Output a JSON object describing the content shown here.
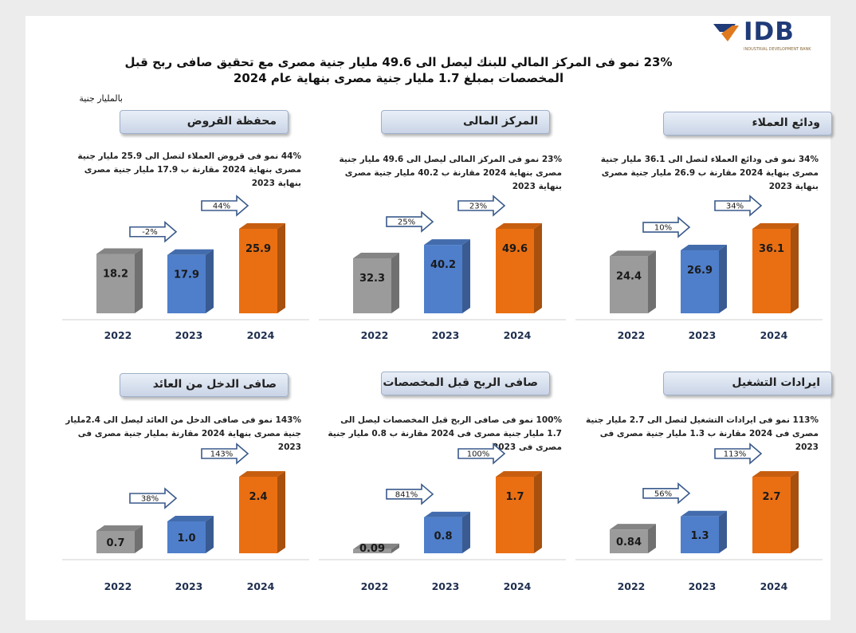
{
  "logo": {
    "text": "IDB",
    "subtext": "INDUSTRIAL DEVELOPMENT BANK"
  },
  "headline": "23% نمو فى المركز المالي للبنك ليصل الى 49.6 مليار جنية مصرى مع تحقيق صافى ربح قبل المخصصات بمبلغ 1.7 مليار جنية مصرى بنهاية عام 2024",
  "unit_label": "بالمليار جنية",
  "colors": {
    "2022": "#9b9b9b",
    "2023": "#4f7fcb",
    "2024": "#ea6f12"
  },
  "chart_data": [
    {
      "type": "bar",
      "title": "ودائع العملاء",
      "description": "34% نمو فى ودائع العملاء لتصل الى 36.1 مليار جنية مصرى بنهاية 2024 مقارنة ب 26.9 مليار جنية مصرى بنهاية 2023",
      "categories": [
        "2022",
        "2023",
        "2024"
      ],
      "values": [
        24.4,
        26.9,
        36.1
      ],
      "value_labels": [
        "24.4",
        "26.9",
        "36.1"
      ],
      "growth": [
        "10%",
        "34%"
      ],
      "ylim": [
        0,
        36.1
      ]
    },
    {
      "type": "bar",
      "title": "المركز المالى",
      "description": "23% نمو فى المركز المالى ليصل الى 49.6 مليار جنية مصرى بنهاية 2024 مقارنة ب 40.2 مليار جنية مصرى بنهاية 2023",
      "categories": [
        "2022",
        "2023",
        "2024"
      ],
      "values": [
        32.3,
        40.2,
        49.6
      ],
      "value_labels": [
        "32.3",
        "40.2",
        "49.6"
      ],
      "growth": [
        "25%",
        "23%"
      ],
      "ylim": [
        0,
        49.6
      ]
    },
    {
      "type": "bar",
      "title": "محفظة القروض",
      "description": "44% نمو فى قروض العملاء لتصل الى 25.9 مليار جنية مصرى بنهاية 2024 مقارنة ب 17.9 مليار جنية مصرى بنهاية 2023",
      "categories": [
        "2022",
        "2023",
        "2024"
      ],
      "values": [
        18.2,
        17.9,
        25.9
      ],
      "value_labels": [
        "18.2",
        "17.9",
        "25.9"
      ],
      "growth": [
        "-2%",
        "44%"
      ],
      "ylim": [
        0,
        25.9
      ]
    },
    {
      "type": "bar",
      "title": "ايرادات التشغيل",
      "description": "113% نمو فى ايرادات التشغيل لتصل الى 2.7 مليار جنية مصرى فى 2024 مقارنة ب 1.3 مليار جنية مصرى فى 2023",
      "categories": [
        "2022",
        "2023",
        "2024"
      ],
      "values": [
        0.84,
        1.3,
        2.7
      ],
      "value_labels": [
        "0.84",
        "1.3",
        "2.7"
      ],
      "growth": [
        "56%",
        "113%"
      ],
      "ylim": [
        0,
        2.7
      ]
    },
    {
      "type": "bar",
      "title": "صافى الربح قبل المخصصات",
      "description": "100% نمو فى صافى الربح قبل المخصصات ليصل الى 1.7 مليار جنية مصرى فى 2024 مقارنة ب 0.8 مليار جنية مصرى فى 2023",
      "categories": [
        "2022",
        "2023",
        "2024"
      ],
      "values": [
        0.09,
        0.8,
        1.7
      ],
      "value_labels": [
        "0.09",
        "0.8",
        "1.7"
      ],
      "growth": [
        "841%",
        "100%"
      ],
      "ylim": [
        0,
        1.7
      ]
    },
    {
      "type": "bar",
      "title": "صافى الدخل من العائد",
      "description": "143% نمو فى صافى الدخل من العائد ليصل الى 2.4مليار جنية مصرى بنهاية 2024 مقارنة بمليار جنية مصرى فى 2023",
      "categories": [
        "2022",
        "2023",
        "2024"
      ],
      "values": [
        0.7,
        1.0,
        2.4
      ],
      "value_labels": [
        "0.7",
        "1.0",
        "2.4"
      ],
      "growth": [
        "38%",
        "143%"
      ],
      "ylim": [
        0,
        2.4
      ]
    }
  ]
}
